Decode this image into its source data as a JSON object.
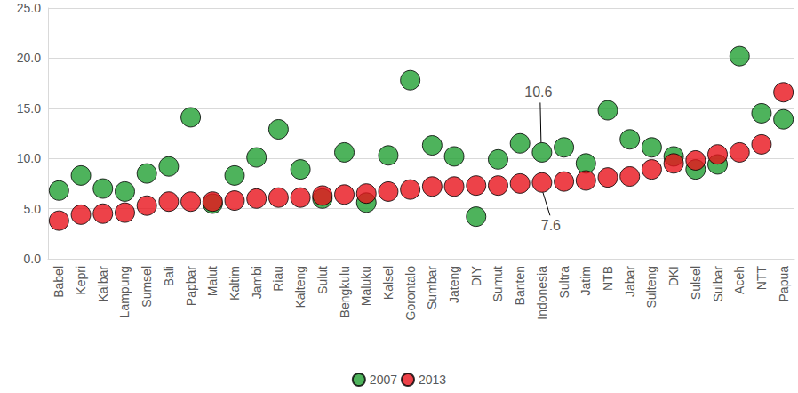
{
  "chart_data": {
    "type": "scatter",
    "categories": [
      "Babel",
      "Kepri",
      "Kalbar",
      "Lampung",
      "Sumsel",
      "Bali",
      "Papbar",
      "Malut",
      "Kaltim",
      "Jambi",
      "Riau",
      "Kalteng",
      "Sulut",
      "Bengkulu",
      "Maluku",
      "Kalsel",
      "Gorontalo",
      "Sumbar",
      "Jateng",
      "DIY",
      "Sumut",
      "Banten",
      "Indonesia",
      "Sultra",
      "Jatim",
      "NTB",
      "Jabar",
      "Sulteng",
      "DKI",
      "Sulsel",
      "Sulbar",
      "Aceh",
      "NTT",
      "Papua"
    ],
    "series": [
      {
        "name": "2007",
        "color": "#22a033",
        "values": [
          6.8,
          8.3,
          7.0,
          6.7,
          8.5,
          9.2,
          14.1,
          5.5,
          8.3,
          10.1,
          12.9,
          8.9,
          6.0,
          10.6,
          5.6,
          10.3,
          17.8,
          11.3,
          10.2,
          4.2,
          9.9,
          11.5,
          10.6,
          11.1,
          9.5,
          14.8,
          11.9,
          11.1,
          10.2,
          8.9,
          9.4,
          20.2,
          14.5,
          13.9
        ]
      },
      {
        "name": "2013",
        "color": "#e8131b",
        "values": [
          3.8,
          4.4,
          4.5,
          4.6,
          5.3,
          5.7,
          5.7,
          5.7,
          5.8,
          6.0,
          6.1,
          6.1,
          6.3,
          6.4,
          6.5,
          6.7,
          6.9,
          7.2,
          7.2,
          7.3,
          7.3,
          7.5,
          7.6,
          7.7,
          7.8,
          8.1,
          8.2,
          8.9,
          9.5,
          9.8,
          10.4,
          10.6,
          11.4,
          16.6
        ]
      }
    ],
    "annotations": [
      {
        "text": "10.6",
        "category": "Indonesia",
        "value": 10.6
      },
      {
        "text": "7.6",
        "category": "Indonesia",
        "value": 7.6
      }
    ],
    "ylim": [
      0,
      25
    ],
    "yticks": [
      {
        "value": 0,
        "label": "0.0"
      },
      {
        "value": 5,
        "label": "5.0"
      },
      {
        "value": 10,
        "label": "10.0"
      },
      {
        "value": 15,
        "label": "15.0"
      },
      {
        "value": 20,
        "label": "20.0"
      },
      {
        "value": 25,
        "label": "25.0"
      }
    ],
    "grid": true,
    "legend": "bottom",
    "marker": "circle"
  }
}
